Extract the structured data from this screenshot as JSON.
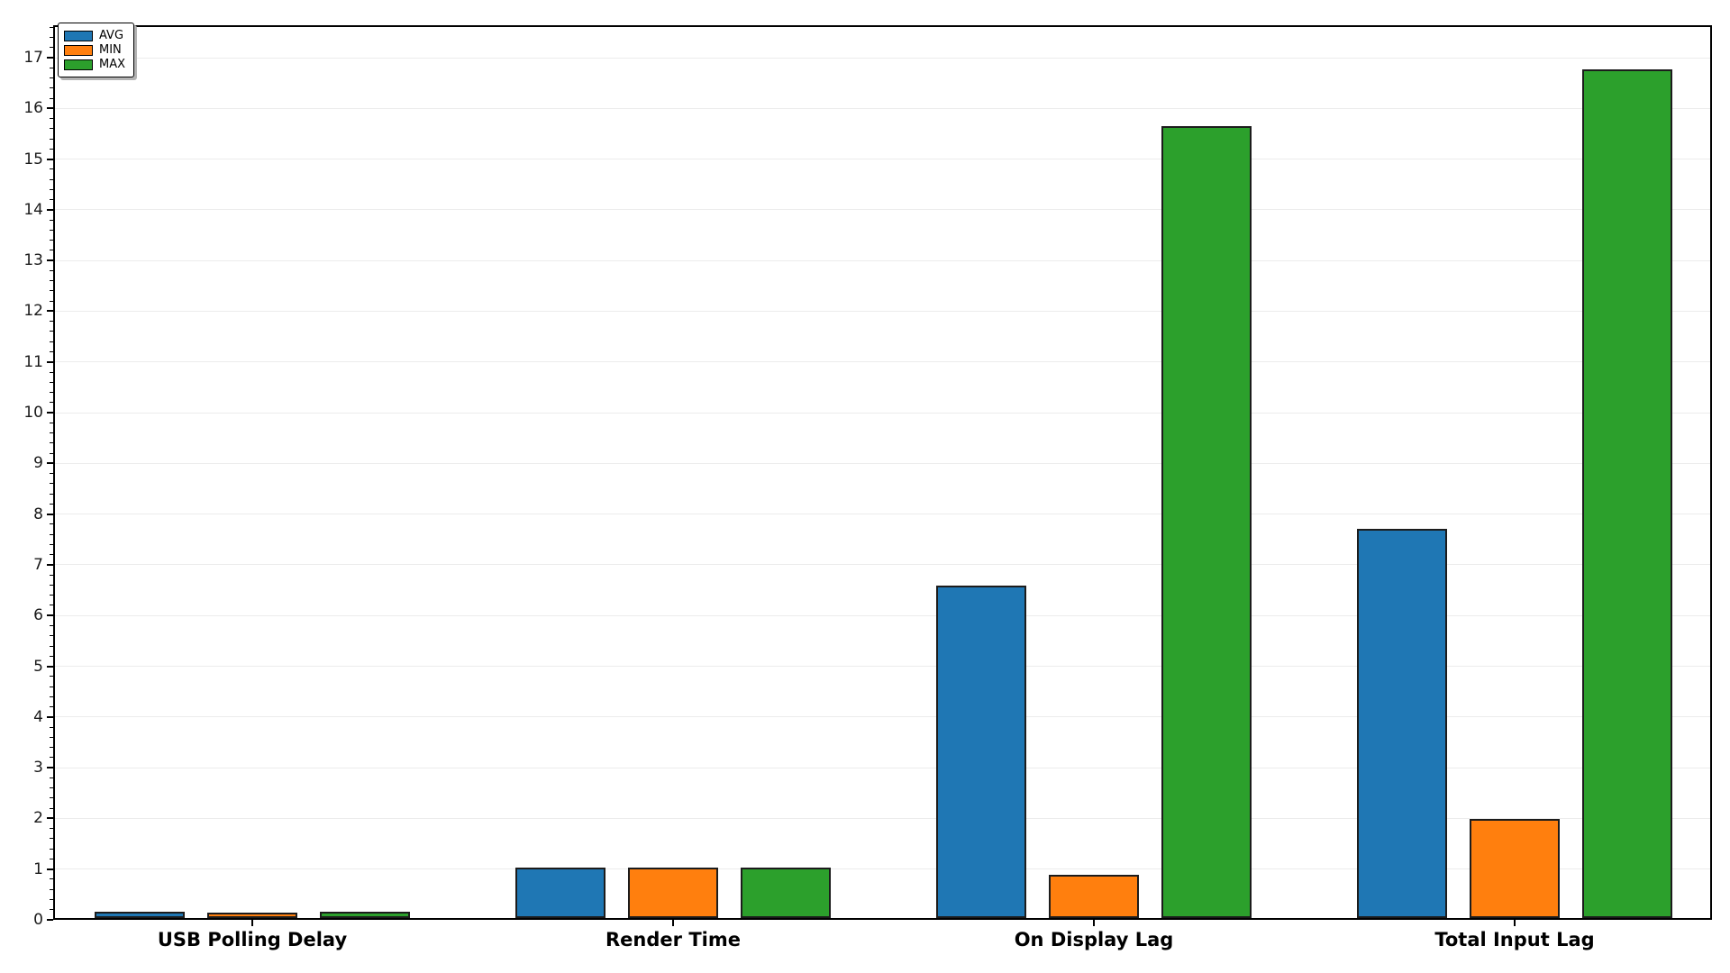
{
  "chart_data": {
    "type": "bar",
    "title": "",
    "xlabel": "",
    "ylabel": "",
    "categories": [
      "USB Polling Delay",
      "Render Time",
      "On Display Lag",
      "Total Input Lag"
    ],
    "series": [
      {
        "name": "AVG",
        "color": "#1f77b4",
        "values": [
          0.13,
          1.0,
          6.55,
          7.68
        ]
      },
      {
        "name": "MIN",
        "color": "#ff7f0e",
        "values": [
          0.1,
          1.0,
          0.85,
          1.95
        ]
      },
      {
        "name": "MAX",
        "color": "#2ca02c",
        "values": [
          0.12,
          1.0,
          15.62,
          16.74
        ]
      }
    ],
    "ylim": [
      0,
      17.6
    ],
    "yticks": [
      0,
      1,
      2,
      3,
      4,
      5,
      6,
      7,
      8,
      9,
      10,
      11,
      12,
      13,
      14,
      15,
      16,
      17
    ],
    "y_minor_tick_step": 0.2,
    "grid": "horizontal-major",
    "legend_position": "upper-left",
    "colors": {
      "background": "#ffffff",
      "spine": "#000000",
      "grid": "#ececec",
      "bar_edge": "#1c1c1c",
      "tick_text": "#1a1a1a",
      "legend_shadow": "#b3b3b3"
    }
  }
}
